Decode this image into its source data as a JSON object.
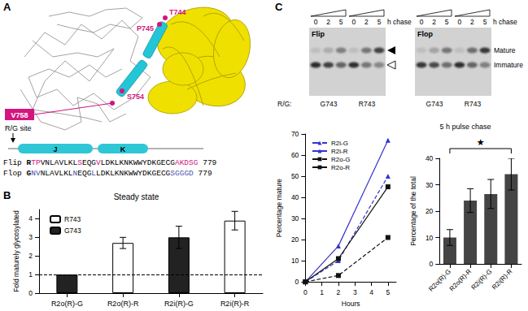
{
  "panel_labels": [
    "A",
    "B",
    "C"
  ],
  "structure": {
    "residues": [
      "T744",
      "P745",
      "S754",
      "V758"
    ],
    "site_label": "R/G site",
    "helices": [
      "J",
      "K"
    ],
    "sequences": [
      {
        "name": "Flip",
        "end": 779,
        "segments": [
          {
            "text": "R",
            "color": "#000000"
          },
          {
            "text": "TP",
            "color": "#d4157f"
          },
          {
            "text": "VNLAVLKL",
            "color": "#000000"
          },
          {
            "text": "S",
            "color": "#d4157f"
          },
          {
            "text": "EQG",
            "color": "#000000"
          },
          {
            "text": "V",
            "color": "#d4157f"
          },
          {
            "text": "LDKLKNKWWYDKGECG",
            "color": "#000000"
          },
          {
            "text": "AKDSG",
            "color": "#d4157f"
          }
        ]
      },
      {
        "name": "Flop",
        "end": 779,
        "segments": [
          {
            "text": "G",
            "color": "#000000"
          },
          {
            "text": "NV",
            "color": "#5050b0"
          },
          {
            "text": "NLAVLKL",
            "color": "#000000"
          },
          {
            "text": "N",
            "color": "#5050b0"
          },
          {
            "text": "EQG",
            "color": "#000000"
          },
          {
            "text": "L",
            "color": "#5050b0"
          },
          {
            "text": "LDKLKNKWWYDKGECG",
            "color": "#000000"
          },
          {
            "text": "SGGGD",
            "color": "#5050b0"
          }
        ]
      }
    ]
  },
  "gels": {
    "chase_times": [
      0,
      2,
      5
    ],
    "chase_unit": "h chase",
    "panels": [
      "Flip",
      "Flop"
    ],
    "rg_label": "R/G:",
    "groups": [
      "G743",
      "R743"
    ],
    "bands": [
      "Mature",
      "Immature"
    ]
  },
  "chart_data": [
    {
      "type": "bar",
      "title": "Steady state",
      "ylabel": "Fold maturely glycosylated",
      "categories": [
        "R2o(R)-G",
        "R2o(R)-R",
        "R2i(R)-G",
        "R2i(R)-R"
      ],
      "series": [
        {
          "name": "R743",
          "color": "#ffffff",
          "values": [
            null,
            2.7,
            null,
            3.9
          ],
          "errors": [
            null,
            0.3,
            null,
            0.5
          ]
        },
        {
          "name": "G743",
          "color": "#222222",
          "values": [
            1,
            null,
            3.0,
            null
          ],
          "errors": [
            null,
            null,
            0.6,
            null
          ]
        }
      ],
      "reference_line": 1,
      "ylim": [
        0,
        4.5
      ],
      "yticks": [
        0,
        1,
        2,
        3,
        4
      ],
      "legend": "top-left",
      "grid": false
    },
    {
      "type": "line",
      "xlabel": "Hours",
      "ylabel": "Percentage mature",
      "x": [
        0,
        2,
        5
      ],
      "series": [
        {
          "name": "R2i-G",
          "color": "#3333cc",
          "marker": "triangle",
          "line_style": "dashed",
          "values": [
            0,
            10,
            50
          ]
        },
        {
          "name": "R2i-R",
          "color": "#3333cc",
          "marker": "triangle",
          "line_style": "solid",
          "values": [
            0,
            17,
            67
          ]
        },
        {
          "name": "R2o-G",
          "color": "#111111",
          "marker": "square",
          "line_style": "dashed",
          "values": [
            0,
            3,
            21
          ]
        },
        {
          "name": "R2o-R",
          "color": "#111111",
          "marker": "square",
          "line_style": "solid",
          "values": [
            0,
            11,
            45
          ]
        }
      ],
      "xlim": [
        0,
        5.5
      ],
      "xticks": [
        0,
        1,
        2,
        3,
        4,
        5
      ],
      "ylim": [
        0,
        70
      ],
      "yticks": [
        0,
        10,
        20,
        30,
        40,
        50,
        60,
        70
      ],
      "legend": "top-left",
      "grid": false
    },
    {
      "type": "bar",
      "title": "5 h pulse chase",
      "ylabel": "Percentage of the total",
      "categories": [
        "R2o(R)-G",
        "R2o(R)-R",
        "R2i(R)-G",
        "R2i(R)-R"
      ],
      "values": [
        10,
        24,
        26.5,
        34
      ],
      "errors": [
        3,
        4.5,
        5.5,
        6
      ],
      "color": "#444444",
      "ylim": [
        0,
        40
      ],
      "yticks": [
        0,
        10,
        20,
        30,
        40
      ],
      "annotations": [
        {
          "text": "★",
          "from": "R2o(R)-G",
          "to": "R2i(R)-R"
        }
      ],
      "grid": false
    }
  ]
}
